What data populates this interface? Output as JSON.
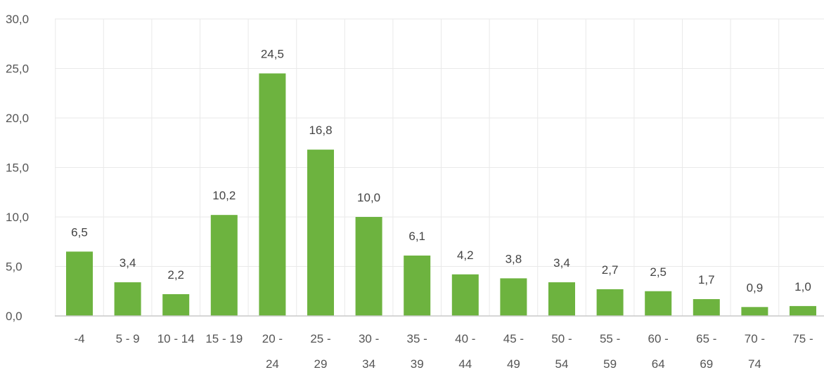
{
  "chart_data": {
    "type": "bar",
    "categories": [
      "-4",
      "5 - 9",
      "10 - 14",
      "15 - 19",
      "20 - 24",
      "25 - 29",
      "30 - 34",
      "35 - 39",
      "40 - 44",
      "45 - 49",
      "50 - 54",
      "55 - 59",
      "60 - 64",
      "65 - 69",
      "70 - 74",
      "75 -"
    ],
    "category_lines": [
      [
        "-4"
      ],
      [
        "5 - 9"
      ],
      [
        "10 - 14"
      ],
      [
        "15 - 19"
      ],
      [
        "20 -",
        "24"
      ],
      [
        "25 -",
        "29"
      ],
      [
        "30 -",
        "34"
      ],
      [
        "35 -",
        "39"
      ],
      [
        "40 -",
        "44"
      ],
      [
        "45 -",
        "49"
      ],
      [
        "50 -",
        "54"
      ],
      [
        "55 -",
        "59"
      ],
      [
        "60 -",
        "64"
      ],
      [
        "65 -",
        "69"
      ],
      [
        "70 -",
        "74"
      ],
      [
        "75 -"
      ]
    ],
    "values": [
      6.5,
      3.4,
      2.2,
      10.2,
      24.5,
      16.8,
      10.0,
      6.1,
      4.2,
      3.8,
      3.4,
      2.7,
      2.5,
      1.7,
      0.9,
      1.0
    ],
    "value_labels": [
      "6,5",
      "3,4",
      "2,2",
      "10,2",
      "24,5",
      "16,8",
      "10,0",
      "6,1",
      "4,2",
      "3,8",
      "3,4",
      "2,7",
      "2,5",
      "1,7",
      "0,9",
      "1,0"
    ],
    "yticks": [
      0,
      5,
      10,
      15,
      20,
      25,
      30
    ],
    "ytick_labels": [
      "0,0",
      "5,0",
      "10,0",
      "15,0",
      "20,0",
      "25,0",
      "30,0"
    ],
    "ylim": [
      0,
      30
    ],
    "grid": true,
    "bar_color": "#6db33f",
    "title": "",
    "xlabel": "",
    "ylabel": ""
  }
}
